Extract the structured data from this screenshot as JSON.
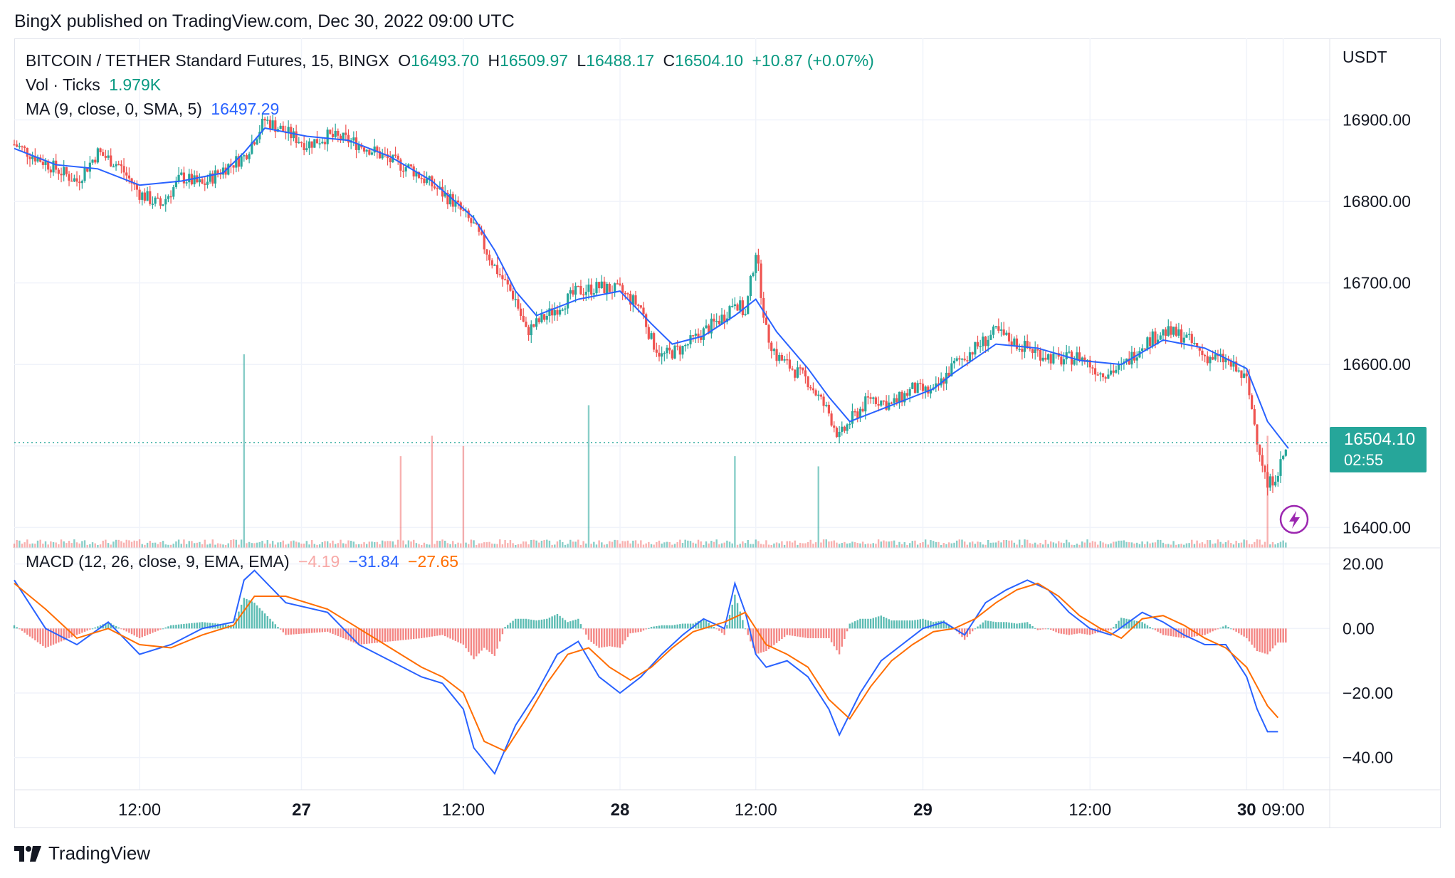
{
  "header": {
    "publisher_text": "BingX published on TradingView.com, Dec 30, 2022 09:00 UTC"
  },
  "legend": {
    "symbol": "BITCOIN / TETHER Standard Futures, 15, BINGX",
    "o_label": "O",
    "o_value": "16493.70",
    "h_label": "H",
    "h_value": "16509.97",
    "l_label": "L",
    "l_value": "16488.17",
    "c_label": "C",
    "c_value": "16504.10",
    "change": "+10.87 (+0.07%)",
    "vol_label": "Vol · Ticks",
    "vol_value": "1.979K",
    "ma_label": "MA (9, close, 0, SMA, 5)",
    "ma_value": "16497.29",
    "macd_label": "MACD (12, 26, close, 9, EMA, EMA)",
    "macd_hist": "−4.19",
    "macd_line": "−31.84",
    "macd_signal": "−27.65"
  },
  "axis": {
    "currency": "USDT",
    "price_ticks": [
      "16900.00",
      "16800.00",
      "16700.00",
      "16600.00",
      "16400.00"
    ],
    "macd_ticks": [
      "20.00",
      "0.00",
      "−20.00",
      "−40.00"
    ],
    "time_labels": [
      "12:00",
      "27",
      "12:00",
      "28",
      "12:00",
      "29",
      "12:00",
      "30",
      "09:00"
    ]
  },
  "price_tag": {
    "price": "16504.10",
    "countdown": "02:55"
  },
  "footer": {
    "logo_text": "TradingView"
  },
  "colors": {
    "up": "#26a69a",
    "down": "#ef5350",
    "ma": "#2962ff",
    "macd": "#2962ff",
    "signal": "#ff6d00",
    "grid": "#f0f3fa"
  },
  "chart_data": {
    "type": "candlestick",
    "title": "BITCOIN / TETHER Standard Futures, 15, BINGX",
    "price_range": [
      16375,
      17000
    ],
    "macd_range": [
      -50,
      25
    ],
    "time_range_hours": [
      0,
      98
    ],
    "price_series": [
      [
        0,
        16870
      ],
      [
        4,
        16840
      ],
      [
        6,
        16825
      ],
      [
        8,
        16860
      ],
      [
        10,
        16845
      ],
      [
        12,
        16810
      ],
      [
        14,
        16795
      ],
      [
        16,
        16830
      ],
      [
        18,
        16820
      ],
      [
        20,
        16840
      ],
      [
        22,
        16855
      ],
      [
        24,
        16900
      ],
      [
        26,
        16885
      ],
      [
        28,
        16870
      ],
      [
        30,
        16880
      ],
      [
        32,
        16875
      ],
      [
        34,
        16865
      ],
      [
        36,
        16850
      ],
      [
        38,
        16840
      ],
      [
        40,
        16820
      ],
      [
        42,
        16800
      ],
      [
        44,
        16770
      ],
      [
        46,
        16720
      ],
      [
        48,
        16680
      ],
      [
        49,
        16640
      ],
      [
        50,
        16650
      ],
      [
        52,
        16670
      ],
      [
        54,
        16690
      ],
      [
        56,
        16695
      ],
      [
        58,
        16690
      ],
      [
        60,
        16670
      ],
      [
        61,
        16630
      ],
      [
        62,
        16610
      ],
      [
        64,
        16620
      ],
      [
        66,
        16640
      ],
      [
        68,
        16660
      ],
      [
        69,
        16680
      ],
      [
        70,
        16660
      ],
      [
        71,
        16740
      ],
      [
        72,
        16640
      ],
      [
        73,
        16610
      ],
      [
        74,
        16600
      ],
      [
        76,
        16580
      ],
      [
        78,
        16540
      ],
      [
        79,
        16510
      ],
      [
        80,
        16530
      ],
      [
        82,
        16560
      ],
      [
        84,
        16550
      ],
      [
        86,
        16570
      ],
      [
        88,
        16565
      ],
      [
        90,
        16600
      ],
      [
        92,
        16620
      ],
      [
        94,
        16640
      ],
      [
        96,
        16625
      ],
      [
        98,
        16615
      ],
      [
        100,
        16605
      ],
      [
        102,
        16610
      ],
      [
        104,
        16590
      ],
      [
        106,
        16595
      ],
      [
        108,
        16625
      ],
      [
        110,
        16640
      ],
      [
        112,
        16635
      ],
      [
        114,
        16610
      ],
      [
        116,
        16605
      ],
      [
        118,
        16580
      ],
      [
        119,
        16510
      ],
      [
        120,
        16450
      ],
      [
        121,
        16470
      ],
      [
        122,
        16504
      ]
    ],
    "ma_series": [
      [
        0,
        16865
      ],
      [
        4,
        16845
      ],
      [
        8,
        16840
      ],
      [
        12,
        16820
      ],
      [
        16,
        16825
      ],
      [
        20,
        16835
      ],
      [
        22,
        16860
      ],
      [
        24,
        16890
      ],
      [
        28,
        16880
      ],
      [
        32,
        16875
      ],
      [
        36,
        16855
      ],
      [
        40,
        16825
      ],
      [
        44,
        16780
      ],
      [
        46,
        16740
      ],
      [
        48,
        16690
      ],
      [
        50,
        16660
      ],
      [
        54,
        16680
      ],
      [
        58,
        16690
      ],
      [
        61,
        16650
      ],
      [
        63,
        16625
      ],
      [
        66,
        16635
      ],
      [
        69,
        16660
      ],
      [
        71,
        16680
      ],
      [
        73,
        16640
      ],
      [
        76,
        16595
      ],
      [
        78,
        16560
      ],
      [
        80,
        16530
      ],
      [
        84,
        16550
      ],
      [
        88,
        16570
      ],
      [
        90,
        16590
      ],
      [
        94,
        16625
      ],
      [
        98,
        16620
      ],
      [
        102,
        16605
      ],
      [
        106,
        16600
      ],
      [
        110,
        16630
      ],
      [
        114,
        16620
      ],
      [
        118,
        16595
      ],
      [
        120,
        16530
      ],
      [
        122,
        16497
      ]
    ],
    "macd_series": [
      [
        0,
        15
      ],
      [
        3,
        0
      ],
      [
        6,
        -5
      ],
      [
        9,
        2
      ],
      [
        12,
        -8
      ],
      [
        15,
        -5
      ],
      [
        18,
        0
      ],
      [
        21,
        2
      ],
      [
        22,
        15
      ],
      [
        23,
        18
      ],
      [
        26,
        8
      ],
      [
        30,
        5
      ],
      [
        33,
        -5
      ],
      [
        36,
        -10
      ],
      [
        39,
        -15
      ],
      [
        41,
        -17
      ],
      [
        43,
        -25
      ],
      [
        44,
        -37
      ],
      [
        46,
        -45
      ],
      [
        48,
        -30
      ],
      [
        50,
        -20
      ],
      [
        52,
        -8
      ],
      [
        54,
        -4
      ],
      [
        56,
        -15
      ],
      [
        58,
        -20
      ],
      [
        60,
        -15
      ],
      [
        62,
        -8
      ],
      [
        64,
        -2
      ],
      [
        66,
        3
      ],
      [
        68,
        0
      ],
      [
        69,
        14
      ],
      [
        70,
        5
      ],
      [
        71,
        -8
      ],
      [
        72,
        -12
      ],
      [
        74,
        -10
      ],
      [
        76,
        -15
      ],
      [
        78,
        -25
      ],
      [
        79,
        -33
      ],
      [
        81,
        -20
      ],
      [
        83,
        -10
      ],
      [
        85,
        -5
      ],
      [
        87,
        0
      ],
      [
        89,
        2
      ],
      [
        91,
        -2
      ],
      [
        93,
        8
      ],
      [
        95,
        12
      ],
      [
        97,
        15
      ],
      [
        99,
        12
      ],
      [
        101,
        5
      ],
      [
        103,
        0
      ],
      [
        105,
        -2
      ],
      [
        108,
        5
      ],
      [
        110,
        2
      ],
      [
        112,
        -2
      ],
      [
        114,
        -5
      ],
      [
        116,
        -5
      ],
      [
        118,
        -15
      ],
      [
        119,
        -25
      ],
      [
        120,
        -32
      ],
      [
        121,
        -32
      ]
    ],
    "signal_series": [
      [
        0,
        14
      ],
      [
        3,
        6
      ],
      [
        6,
        -3
      ],
      [
        9,
        0
      ],
      [
        12,
        -5
      ],
      [
        15,
        -6
      ],
      [
        18,
        -2
      ],
      [
        21,
        1
      ],
      [
        23,
        10
      ],
      [
        26,
        10
      ],
      [
        30,
        6
      ],
      [
        33,
        0
      ],
      [
        36,
        -6
      ],
      [
        39,
        -12
      ],
      [
        41,
        -15
      ],
      [
        43,
        -20
      ],
      [
        45,
        -35
      ],
      [
        47,
        -38
      ],
      [
        49,
        -28
      ],
      [
        51,
        -17
      ],
      [
        53,
        -8
      ],
      [
        55,
        -6
      ],
      [
        57,
        -12
      ],
      [
        59,
        -16
      ],
      [
        61,
        -12
      ],
      [
        63,
        -6
      ],
      [
        65,
        -1
      ],
      [
        68,
        2
      ],
      [
        70,
        5
      ],
      [
        72,
        -5
      ],
      [
        74,
        -8
      ],
      [
        76,
        -12
      ],
      [
        78,
        -22
      ],
      [
        80,
        -28
      ],
      [
        82,
        -18
      ],
      [
        84,
        -10
      ],
      [
        86,
        -5
      ],
      [
        88,
        -1
      ],
      [
        90,
        0
      ],
      [
        92,
        3
      ],
      [
        94,
        8
      ],
      [
        96,
        12
      ],
      [
        98,
        14
      ],
      [
        100,
        10
      ],
      [
        102,
        4
      ],
      [
        104,
        0
      ],
      [
        106,
        -3
      ],
      [
        108,
        3
      ],
      [
        110,
        4
      ],
      [
        112,
        1
      ],
      [
        114,
        -3
      ],
      [
        116,
        -6
      ],
      [
        118,
        -12
      ],
      [
        120,
        -24
      ],
      [
        121,
        -27.65
      ]
    ],
    "volume_spikes": [
      [
        22,
        0.38
      ],
      [
        37,
        0.18
      ],
      [
        40,
        0.22
      ],
      [
        43,
        0.2
      ],
      [
        55,
        0.28
      ],
      [
        69,
        0.18
      ],
      [
        77,
        0.16
      ],
      [
        120,
        0.22
      ]
    ],
    "xlabel": "",
    "ylabel": "USDT"
  }
}
